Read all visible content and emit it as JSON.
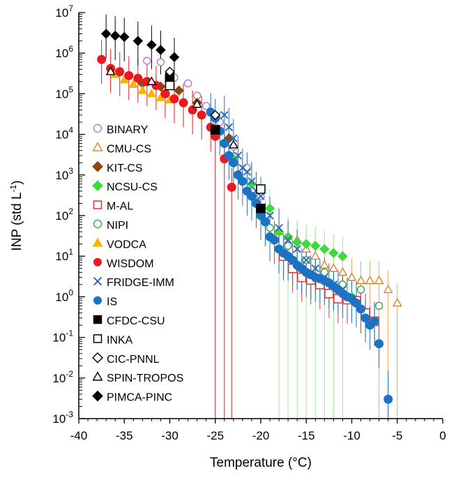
{
  "chart_data": {
    "type": "scatter",
    "xlabel": "Temperature (°C)",
    "ylabel": "INP (std L-1)",
    "y_scale": "log",
    "xlim": [
      -40,
      0
    ],
    "ylim_exp": [
      -3,
      7
    ],
    "x_ticks": [
      "-40",
      "-35",
      "-30",
      "-25",
      "-20",
      "-15",
      "-10",
      "-5",
      "0"
    ],
    "legend_position": "left-center",
    "series": [
      {
        "name": "BINARY",
        "marker": "circle-open",
        "color": "#b57be0",
        "points": [
          [
            -32.5,
            650000
          ],
          [
            -31,
            600000
          ],
          [
            -29.5,
            250000
          ],
          [
            -28,
            180000
          ],
          [
            -27,
            90000
          ],
          [
            -26,
            50000
          ],
          [
            -24.5,
            20000
          ],
          [
            -23,
            5000
          ],
          [
            -21.5,
            1500
          ],
          [
            -20,
            300
          ]
        ]
      },
      {
        "name": "CMU-CS",
        "marker": "triangle-open",
        "color": "#d9822b",
        "points": [
          [
            -18,
            40
          ],
          [
            -17,
            30
          ],
          [
            -16,
            25
          ],
          [
            -15,
            15
          ],
          [
            -14,
            10
          ],
          [
            -13,
            6
          ],
          [
            -12,
            5
          ],
          [
            -11,
            4
          ],
          [
            -10,
            3
          ],
          [
            -9,
            2.5
          ],
          [
            -8,
            2.5
          ],
          [
            -7,
            2.5
          ],
          [
            -6,
            1.5
          ],
          [
            -5,
            0.7
          ]
        ]
      },
      {
        "name": "KIT-CS",
        "marker": "diamond-filled",
        "color": "#8b4513",
        "points": [
          [
            -33,
            180000
          ],
          [
            -31,
            150000
          ],
          [
            -29,
            120000
          ],
          [
            -27,
            60000
          ],
          [
            -25,
            25000
          ],
          [
            -23.5,
            8000
          ]
        ]
      },
      {
        "name": "NCSU-CS",
        "marker": "diamond-filled",
        "color": "#3adb3a",
        "points": [
          [
            -23,
            2500
          ],
          [
            -21,
            600
          ],
          [
            -19,
            150
          ],
          [
            -18,
            40
          ],
          [
            -17,
            30
          ],
          [
            -16,
            22
          ],
          [
            -15,
            20
          ],
          [
            -14,
            18
          ],
          [
            -13,
            15
          ],
          [
            -12,
            12
          ],
          [
            -11,
            10
          ],
          [
            -10,
            1
          ]
        ]
      },
      {
        "name": "M-AL",
        "marker": "square-open",
        "color": "#e8312a",
        "points": [
          [
            -17.5,
            10
          ],
          [
            -16.5,
            5
          ],
          [
            -15.5,
            3
          ],
          [
            -14.5,
            2.6
          ],
          [
            -13.5,
            2
          ],
          [
            -12.5,
            1.2
          ],
          [
            -11.5,
            0.9
          ],
          [
            -10.5,
            0.85
          ],
          [
            -9.5,
            0.8
          ],
          [
            -8.5,
            0.4
          ],
          [
            -7.5,
            0.25
          ]
        ]
      },
      {
        "name": "NIPI",
        "marker": "circle-open",
        "color": "#3fa65a",
        "points": [
          [
            -21,
            400
          ],
          [
            -20,
            150
          ],
          [
            -19,
            50
          ],
          [
            -17,
            18
          ],
          [
            -15,
            8
          ],
          [
            -13,
            4
          ],
          [
            -11,
            2
          ],
          [
            -9,
            1.5
          ],
          [
            -7,
            0.6
          ]
        ]
      },
      {
        "name": "VODCA",
        "marker": "triangle-filled",
        "color": "#f7b500",
        "points": [
          [
            -36,
            300000
          ],
          [
            -35,
            220000
          ],
          [
            -34,
            170000
          ],
          [
            -33,
            120000
          ],
          [
            -32,
            100000
          ],
          [
            -31,
            80000
          ],
          [
            -30,
            70000
          ]
        ]
      },
      {
        "name": "WISDOM",
        "marker": "circle-filled",
        "color": "#e8191f",
        "points": [
          [
            -37.5,
            700000
          ],
          [
            -36.5,
            420000
          ],
          [
            -35.5,
            350000
          ],
          [
            -34.5,
            280000
          ],
          [
            -33.5,
            240000
          ],
          [
            -32.5,
            200000
          ],
          [
            -31.5,
            160000
          ],
          [
            -30.5,
            100000
          ],
          [
            -29.5,
            75000
          ],
          [
            -28.5,
            60000
          ],
          [
            -27.5,
            40000
          ],
          [
            -26.5,
            30000
          ],
          [
            -25.5,
            15000
          ],
          [
            -25,
            9000
          ],
          [
            -24,
            2500
          ],
          [
            -23.2,
            500
          ]
        ]
      },
      {
        "name": "FRIDGE-IMM",
        "marker": "cross",
        "color": "#2e6cb8",
        "points": [
          [
            -24,
            30000
          ],
          [
            -23.5,
            15000
          ],
          [
            -23,
            8000
          ],
          [
            -22.5,
            3000
          ],
          [
            -22,
            1500
          ],
          [
            -21.5,
            1200
          ],
          [
            -21,
            700
          ],
          [
            -20.5,
            400
          ],
          [
            -20,
            300
          ],
          [
            -19,
            100
          ],
          [
            -18,
            50
          ],
          [
            -17,
            25
          ],
          [
            -16,
            15
          ],
          [
            -15,
            8
          ],
          [
            -14,
            5
          ],
          [
            -13,
            3
          ],
          [
            -12,
            2
          ],
          [
            -11,
            1.5
          ]
        ]
      },
      {
        "name": "IS",
        "marker": "circle-filled",
        "color": "#1b73c4",
        "points": [
          [
            -25.5,
            35000
          ],
          [
            -25,
            25000
          ],
          [
            -24.5,
            12000
          ],
          [
            -24,
            6000
          ],
          [
            -23.5,
            3000
          ],
          [
            -23,
            2000
          ],
          [
            -22.5,
            1000
          ],
          [
            -22,
            700
          ],
          [
            -21.5,
            400
          ],
          [
            -21,
            300
          ],
          [
            -20.5,
            200
          ],
          [
            -20,
            100
          ],
          [
            -19.5,
            70
          ],
          [
            -19,
            30
          ],
          [
            -18.5,
            25
          ],
          [
            -18,
            15
          ],
          [
            -17.5,
            12
          ],
          [
            -17,
            10
          ],
          [
            -16.5,
            8
          ],
          [
            -16,
            6
          ],
          [
            -15.5,
            5
          ],
          [
            -15,
            4
          ],
          [
            -14.5,
            3.5
          ],
          [
            -14,
            3
          ],
          [
            -13.5,
            2.8
          ],
          [
            -13,
            2.5
          ],
          [
            -12.5,
            2.2
          ],
          [
            -12,
            1.8
          ],
          [
            -11.5,
            1.5
          ],
          [
            -11,
            1.2
          ],
          [
            -10.5,
            1
          ],
          [
            -10,
            0.9
          ],
          [
            -9.5,
            0.7
          ],
          [
            -9,
            0.5
          ],
          [
            -8.5,
            0.3
          ],
          [
            -8,
            0.2
          ],
          [
            -7.5,
            0.25
          ],
          [
            -7,
            0.07
          ],
          [
            -6,
            0.003
          ]
        ]
      },
      {
        "name": "CFDC-CSU",
        "marker": "square-filled",
        "color": "#000000",
        "points": [
          [
            -30,
            250000
          ],
          [
            -25,
            13000
          ],
          [
            -20,
            150
          ]
        ]
      },
      {
        "name": "INKA",
        "marker": "square-open",
        "color": "#000000",
        "points": [
          [
            -30,
            160000
          ],
          [
            -20,
            450
          ]
        ]
      },
      {
        "name": "CIC-PNNL",
        "marker": "diamond-open",
        "color": "#000000",
        "points": [
          [
            -30,
            350000
          ],
          [
            -25,
            30000
          ]
        ]
      },
      {
        "name": "SPIN-TROPOS",
        "marker": "triangle-open",
        "color": "#000000",
        "points": [
          [
            -36.5,
            350000
          ],
          [
            -32,
            200000
          ],
          [
            -27,
            55000
          ],
          [
            -23,
            5500
          ]
        ]
      },
      {
        "name": "PIMCA-PINC",
        "marker": "diamond-filled",
        "color": "#000000",
        "points": [
          [
            -37,
            3000000
          ],
          [
            -36,
            2700000
          ],
          [
            -35,
            2500000
          ],
          [
            -33.5,
            2000000
          ],
          [
            -32,
            1600000
          ],
          [
            -31,
            1200000
          ],
          [
            -29.5,
            800000
          ]
        ]
      }
    ]
  }
}
